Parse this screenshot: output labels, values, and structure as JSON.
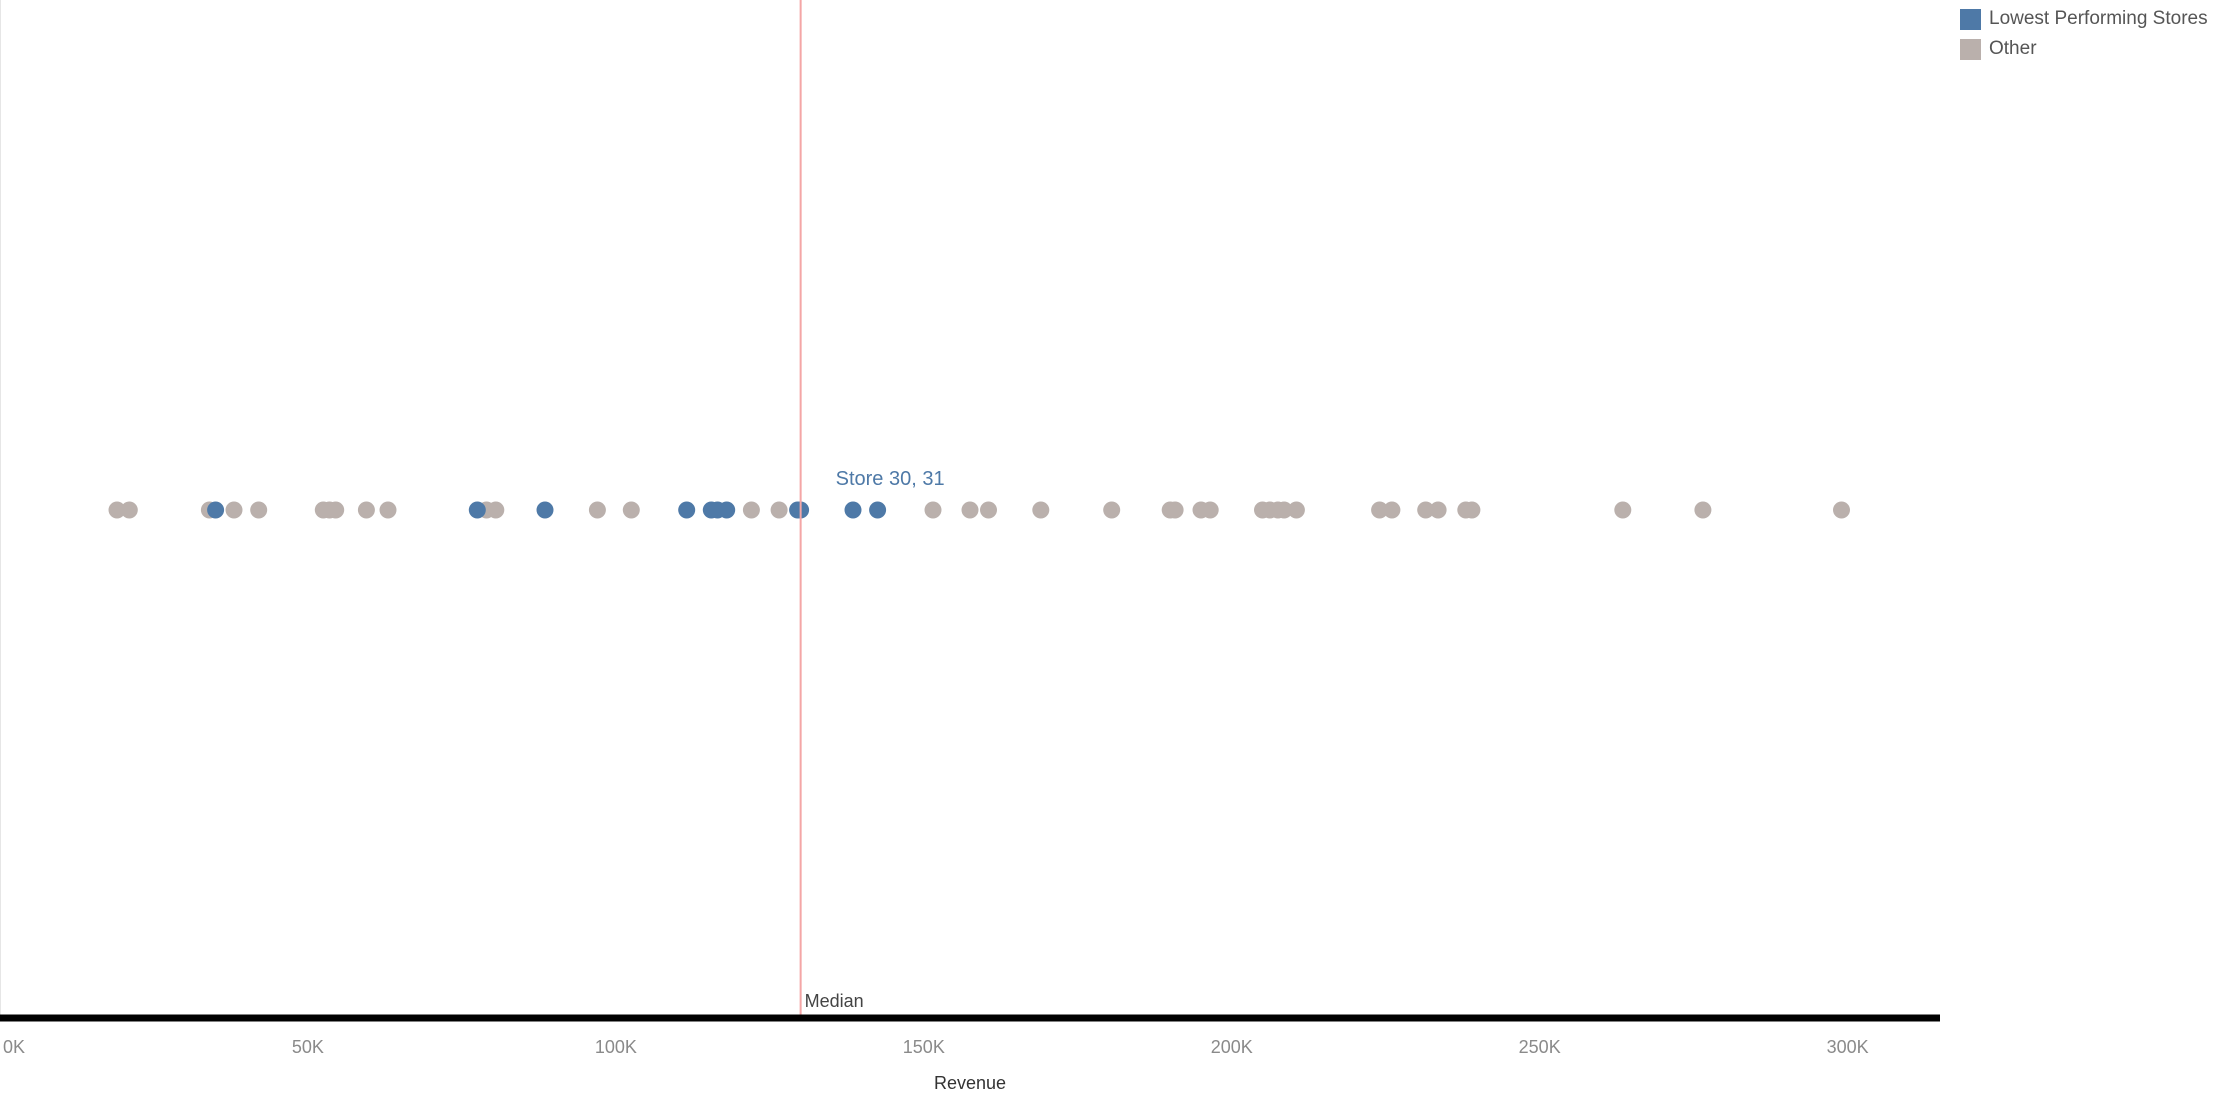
{
  "colors": {
    "highlight": "#4e79a7",
    "other": "#bab0ac",
    "median_line": "#f4a6a6",
    "axis_line": "#000000"
  },
  "legend": {
    "items": [
      {
        "label": "Lowest Performing Stores",
        "color": "#4e79a7"
      },
      {
        "label": "Other",
        "color": "#bab0ac"
      }
    ]
  },
  "chart_data": {
    "type": "scatter",
    "xlabel": "Revenue",
    "xlim": [
      0,
      315000
    ],
    "x_ticks": [
      {
        "value": 0,
        "label": "0K"
      },
      {
        "value": 50000,
        "label": "50K"
      },
      {
        "value": 100000,
        "label": "100K"
      },
      {
        "value": 150000,
        "label": "150K"
      },
      {
        "value": 200000,
        "label": "200K"
      },
      {
        "value": 250000,
        "label": "250K"
      },
      {
        "value": 300000,
        "label": "300K"
      }
    ],
    "grid": false,
    "legend_position": "top-right",
    "series": [
      {
        "name": "Other",
        "color": "#bab0ac",
        "x": [
          19000,
          21000,
          34000,
          38000,
          42000,
          52500,
          53500,
          54500,
          59500,
          63000,
          79000,
          80500,
          97000,
          102500,
          122000,
          126500,
          151500,
          157500,
          160500,
          169000,
          180500,
          190000,
          190800,
          195000,
          196500,
          205000,
          206200,
          207500,
          208500,
          210500,
          224000,
          226000,
          231500,
          233500,
          238000,
          239000,
          263500,
          276500,
          299000
        ]
      },
      {
        "name": "Lowest Performing Stores",
        "color": "#4e79a7",
        "x": [
          35000,
          77500,
          88500,
          111500,
          115500,
          116500,
          118000,
          129500,
          130000,
          138500,
          142500
        ]
      }
    ],
    "reference_line": {
      "value": 130000,
      "label": "Median"
    },
    "annotations": [
      {
        "label": "Store 30, 31",
        "x": 130000
      }
    ]
  }
}
